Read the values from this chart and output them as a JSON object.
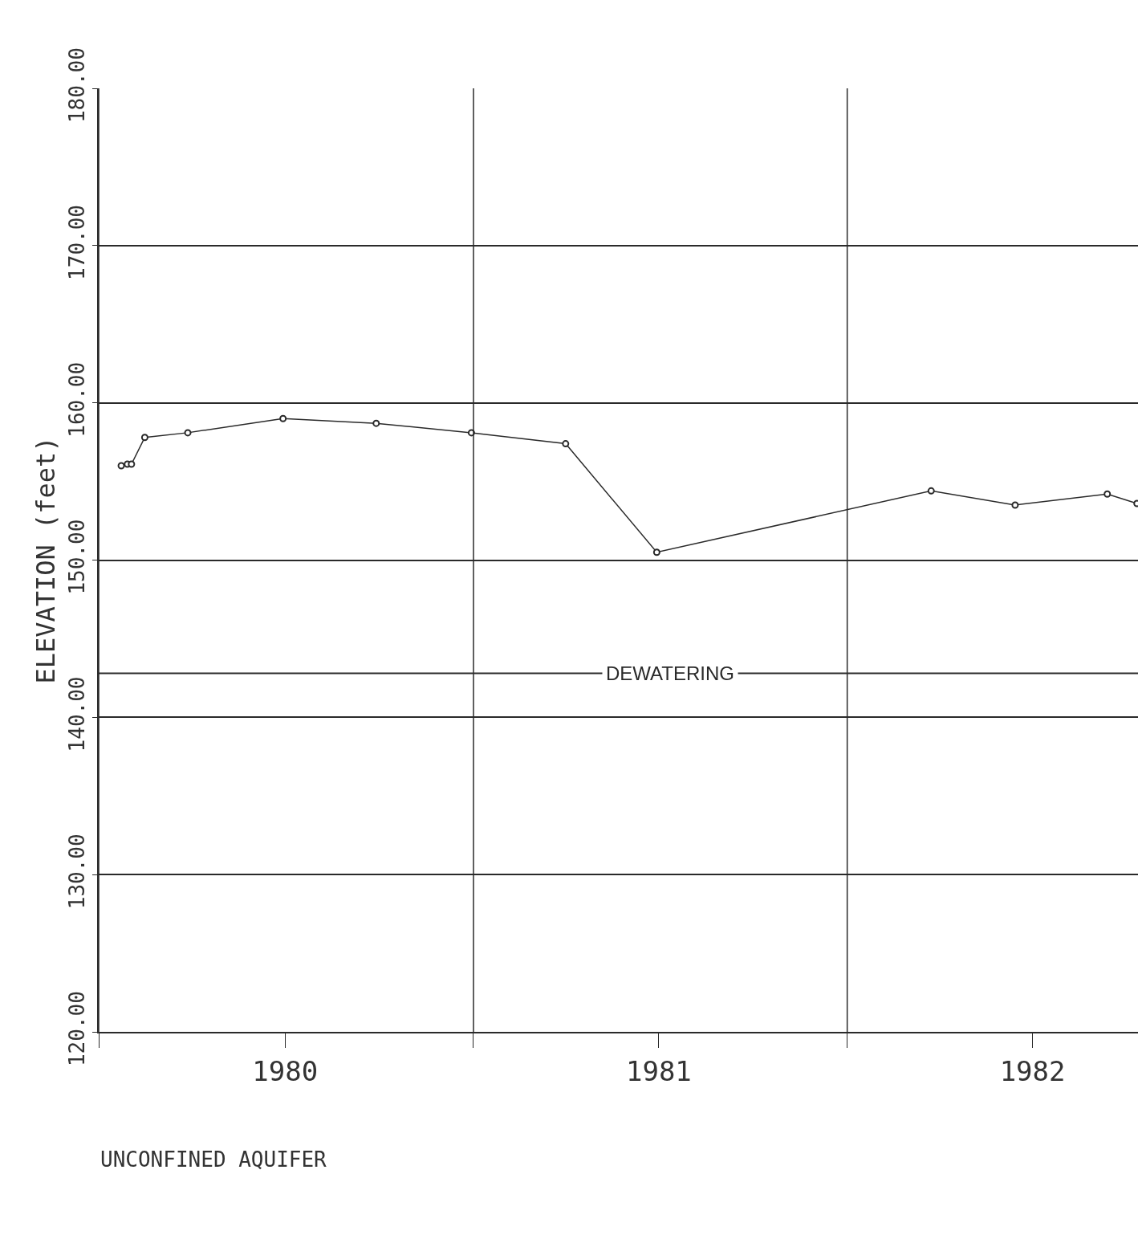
{
  "chart_data": {
    "type": "line",
    "ylabel": "ELEVATION (feet)",
    "annotations": [
      "UNCONFINED AQUIFER"
    ],
    "x": [
      "1980-01-23",
      "1980-01-29",
      "1980-02-02",
      "1980-02-15",
      "1980-03-28",
      "1980-06-29",
      "1980-09-28",
      "1980-12-30",
      "1981-04-01",
      "1981-06-29",
      "1982-03-24",
      "1982-06-14",
      "1982-09-12",
      "1982-10-11"
    ],
    "series": [
      {
        "color": "#2a2a2a",
        "values": [
          156.0,
          156.1,
          156.1,
          157.8,
          158.1,
          159.0,
          158.7,
          158.1,
          157.4,
          150.5,
          154.4,
          153.5,
          154.2,
          153.6
        ]
      }
    ],
    "xlim": [
      "1980-01-01",
      "1982-10-12"
    ],
    "xticks": [
      {
        "value": "1980-01-01",
        "label": null
      },
      {
        "value": "1980-07-01",
        "label": "1980"
      },
      {
        "value": "1981-01-01",
        "label": null
      },
      {
        "value": "1981-07-01",
        "label": "1981"
      },
      {
        "value": "1982-01-01",
        "label": null
      },
      {
        "value": "1982-07-01",
        "label": "1982"
      }
    ],
    "ylim": [
      120,
      180
    ],
    "yticks": [
      {
        "value": 120,
        "label": "120.00"
      },
      {
        "value": 130,
        "label": "130.00"
      },
      {
        "value": 140,
        "label": "140.00"
      },
      {
        "value": 150,
        "label": "150.00"
      },
      {
        "value": 160,
        "label": "160.00"
      },
      {
        "value": 170,
        "label": "170.00"
      },
      {
        "value": 180,
        "label": "180.00"
      }
    ],
    "grid": true,
    "marker": "circle",
    "line_style": "solid",
    "ref_lines": [
      {
        "axis": "y",
        "value": 142.8,
        "label": "DEWATERING",
        "color": "#2a2a2a"
      }
    ]
  }
}
